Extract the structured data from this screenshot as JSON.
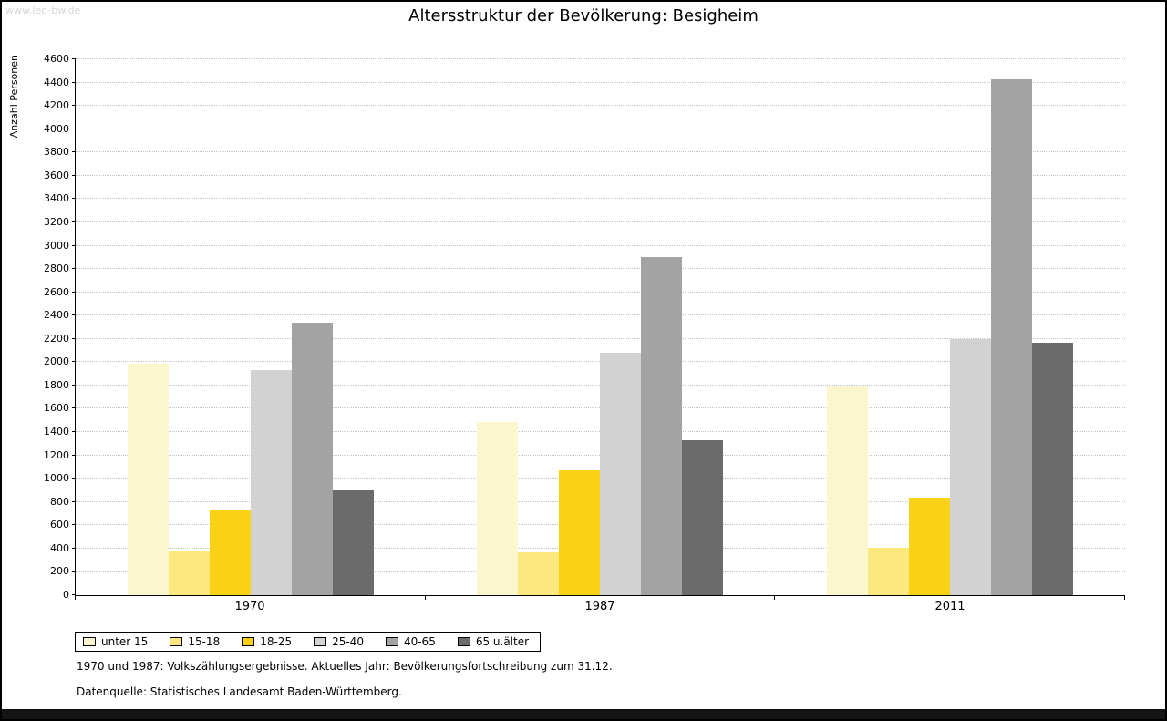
{
  "page": {
    "watermark": "www.leo-bw.de",
    "footnote1": "1970 und 1987: Volkszählungsergebnisse. Aktuelles Jahr: Bevölkerungsfortschreibung zum 31.12.",
    "footnote2": "Datenquelle: Statistisches Landesamt Baden-Württemberg."
  },
  "chart_data": {
    "type": "bar",
    "title": "Altersstruktur der Bevölkerung: Besigheim",
    "xlabel": "",
    "ylabel": "Anzahl Personen",
    "ylim": [
      0,
      4600
    ],
    "ytick_step": 200,
    "grid": true,
    "legend_position": "bottom",
    "categories": [
      "1970",
      "1987",
      "2011"
    ],
    "series": [
      {
        "name": "unter 15",
        "color": "#FCF6CE",
        "values": [
          1990,
          1490,
          1790
        ]
      },
      {
        "name": "15-18",
        "color": "#FBE87F",
        "values": [
          380,
          370,
          410
        ]
      },
      {
        "name": "18-25",
        "color": "#FBD116",
        "values": [
          730,
          1070,
          840
        ]
      },
      {
        "name": "25-40",
        "color": "#D2D2D2",
        "values": [
          1930,
          2080,
          2200
        ]
      },
      {
        "name": "40-65",
        "color": "#A3A3A3",
        "values": [
          2340,
          2900,
          4430
        ]
      },
      {
        "name": "65 u.älter",
        "color": "#6B6B6B",
        "values": [
          900,
          1330,
          2170
        ]
      }
    ]
  }
}
